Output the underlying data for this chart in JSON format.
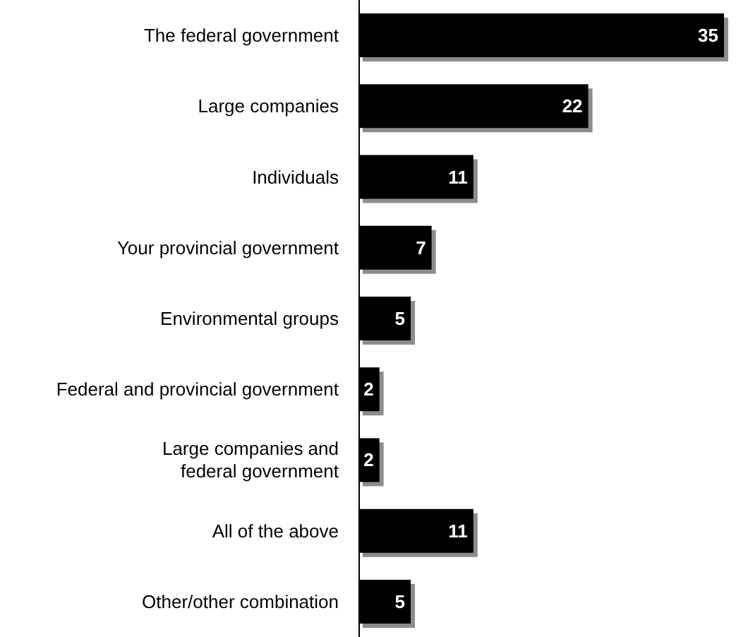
{
  "chart_data": {
    "type": "bar",
    "orientation": "horizontal",
    "categories": [
      "The federal government",
      "Large companies",
      "Individuals",
      "Your provincial government",
      "Environmental groups",
      "Federal and provincial government",
      "Large companies and\nfederal government",
      "All of the above",
      "Other/other combination"
    ],
    "values": [
      35,
      22,
      11,
      7,
      5,
      2,
      2,
      11,
      5
    ],
    "color": "#000000",
    "data_labels": true
  }
}
